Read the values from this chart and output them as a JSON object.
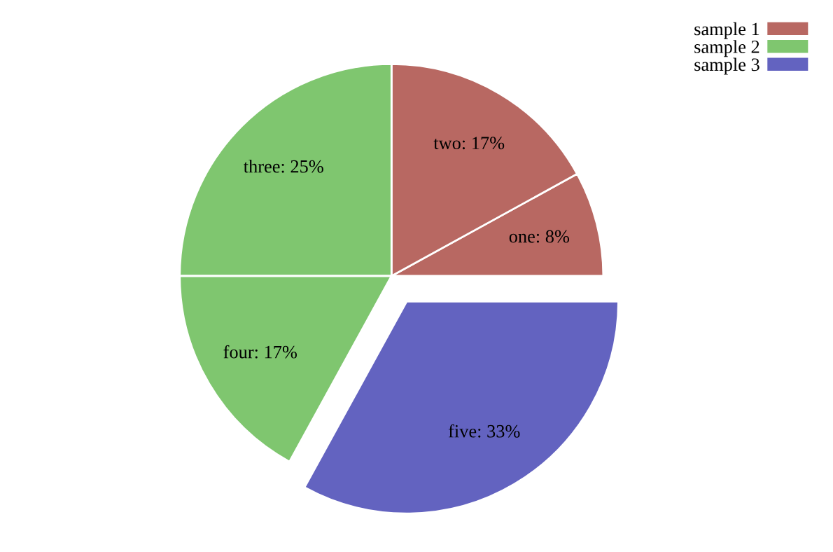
{
  "chart_data": {
    "type": "pie",
    "categories": [
      "one: 8%",
      "two: 17%",
      "three: 25%",
      "four: 17%",
      "five: 33%"
    ],
    "values": [
      8,
      17,
      25,
      17,
      33
    ],
    "colors": [
      "#b86862",
      "#b86862",
      "#7fc66f",
      "#7fc66f",
      "#6363c0"
    ],
    "annotations": [
      "sample 1",
      "sample 2",
      "sample 3"
    ]
  }
}
